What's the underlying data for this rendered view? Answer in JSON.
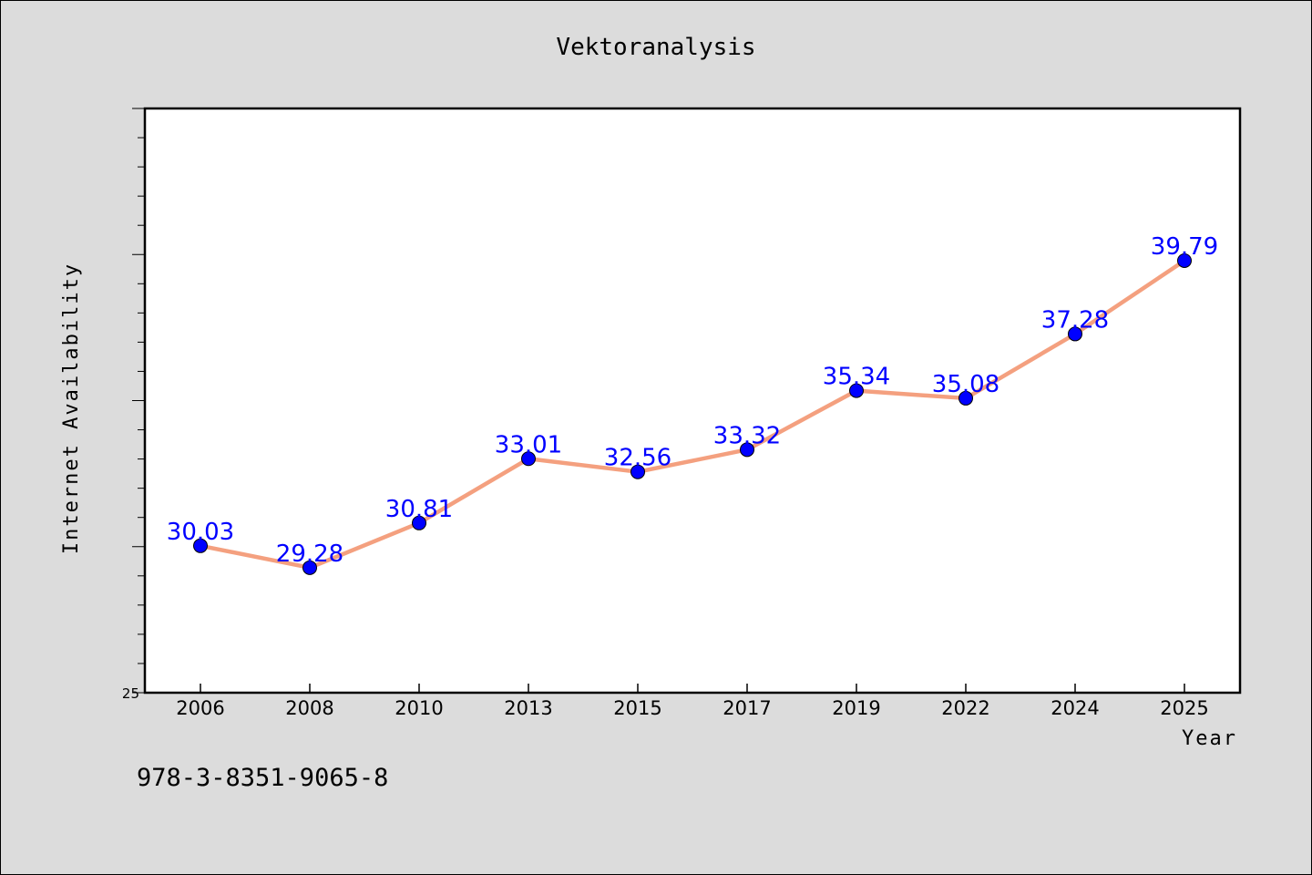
{
  "chart_data": {
    "type": "line",
    "title": "Vektoranalysis",
    "xlabel": "Year",
    "ylabel": "Internet Availability",
    "categories": [
      "2006",
      "2008",
      "2010",
      "2013",
      "2015",
      "2017",
      "2019",
      "2022",
      "2024",
      "2025"
    ],
    "values": [
      30.03,
      29.28,
      30.81,
      33.01,
      32.56,
      33.32,
      35.34,
      35.08,
      37.28,
      39.79
    ],
    "data_labels": [
      "30.03",
      "29.28",
      "30.81",
      "33.01",
      "32.56",
      "33.32",
      "35.34",
      "35.08",
      "37.28",
      "39.79"
    ],
    "ylim": [
      25,
      45
    ],
    "yticks_labeled": [
      {
        "value": 25,
        "label": "25"
      }
    ],
    "line_color": "#f4a07f",
    "marker_color": "#0000ff",
    "grid": false,
    "legend": "none"
  },
  "footnote": "978-3-8351-9065-8"
}
